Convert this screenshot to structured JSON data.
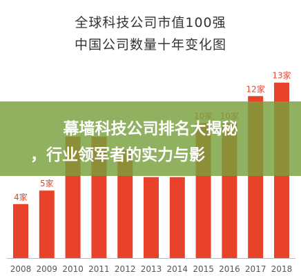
{
  "banner": {
    "line1": "幕墙科技公司排名大揭秘",
    "line2": "，行业领军者的实力与影"
  },
  "colors": {
    "bar": "#e8432a",
    "label": "#e8432a",
    "axis": "#555555",
    "banner": "#7aa03c"
  },
  "chart_data": {
    "type": "bar",
    "title": "全球科技公司市值100强",
    "subtitle": "中国公司数量十年变化图",
    "categories": [
      "2008",
      "2009",
      "2010",
      "2011",
      "2012",
      "2013",
      "2014",
      "2015",
      "2016",
      "2017",
      "2018"
    ],
    "values": [
      4,
      5,
      9,
      9,
      8,
      6,
      6,
      10,
      10,
      12,
      13
    ],
    "data_labels": [
      "4家",
      "5家",
      "",
      "",
      "",
      "",
      "",
      "10家",
      "10家",
      "12家",
      "13家"
    ],
    "ylim": [
      0,
      13.6
    ],
    "grid": false,
    "legend": "none"
  }
}
